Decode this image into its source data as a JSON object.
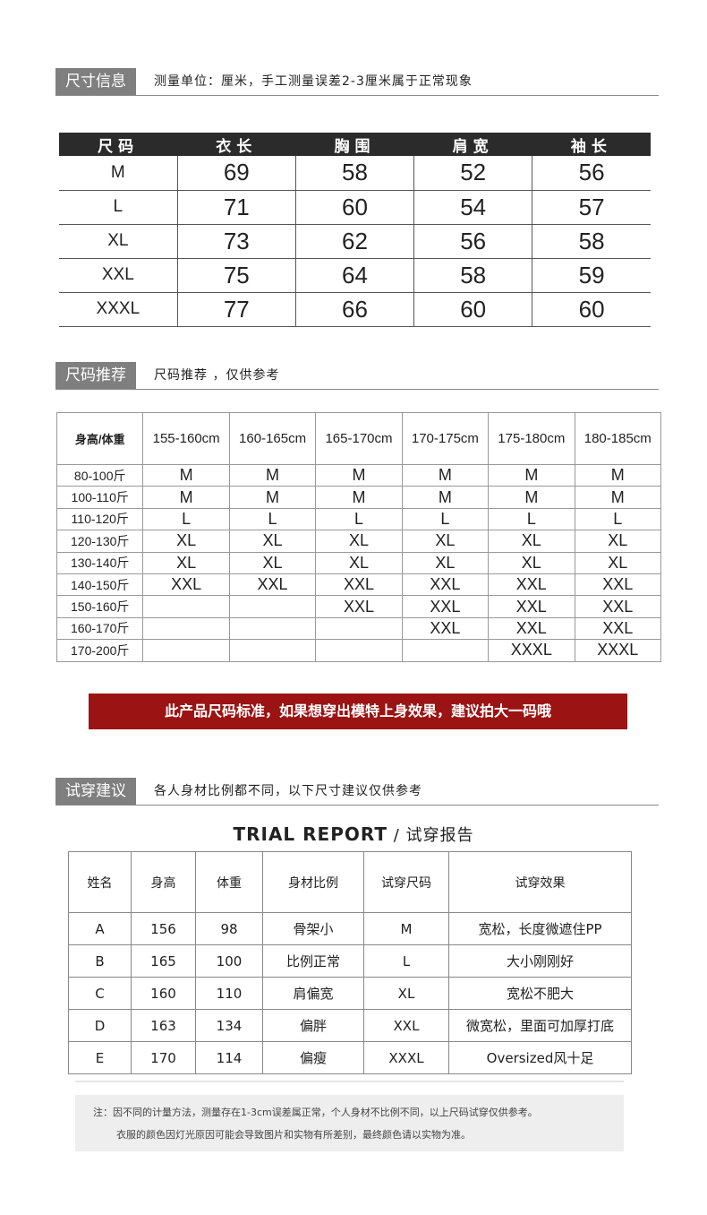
{
  "size_info": {
    "label": "尺寸信息",
    "subtitle": "测量单位：厘米，手工测量误差2-3厘米属于正常现象",
    "headers": [
      "尺码",
      "衣长",
      "胸围",
      "肩宽",
      "袖长"
    ],
    "rows": [
      [
        "M",
        "69",
        "58",
        "52",
        "56"
      ],
      [
        "L",
        "71",
        "60",
        "54",
        "57"
      ],
      [
        "XL",
        "73",
        "62",
        "56",
        "58"
      ],
      [
        "XXL",
        "75",
        "64",
        "58",
        "59"
      ],
      [
        "XXXL",
        "77",
        "66",
        "60",
        "60"
      ]
    ]
  },
  "size_rec": {
    "label": "尺码推荐",
    "subtitle": "尺码推荐 ，仅供参考",
    "headers": [
      "身高/体重",
      "155-160cm",
      "160-165cm",
      "165-170cm",
      "170-175cm",
      "175-180cm",
      "180-185cm"
    ],
    "rows": [
      [
        "80-100斤",
        "M",
        "M",
        "M",
        "M",
        "M",
        "M"
      ],
      [
        "100-110斤",
        "M",
        "M",
        "M",
        "M",
        "M",
        "M"
      ],
      [
        "110-120斤",
        "L",
        "L",
        "L",
        "L",
        "L",
        "L"
      ],
      [
        "120-130斤",
        "XL",
        "XL",
        "XL",
        "XL",
        "XL",
        "XL"
      ],
      [
        "130-140斤",
        "XL",
        "XL",
        "XL",
        "XL",
        "XL",
        "XL"
      ],
      [
        "140-150斤",
        "XXL",
        "XXL",
        "XXL",
        "XXL",
        "XXL",
        "XXL"
      ],
      [
        "150-160斤",
        "",
        "",
        "XXL",
        "XXL",
        "XXL",
        "XXL"
      ],
      [
        "160-170斤",
        "",
        "",
        "",
        "XXL",
        "XXL",
        "XXL"
      ],
      [
        "170-200斤",
        "",
        "",
        "",
        "",
        "XXXL",
        "XXXL"
      ]
    ]
  },
  "banner": {
    "text": "此产品尺码标准，如果想穿出模特上身效果，建议拍大一码哦",
    "color": "#9c1313"
  },
  "trial": {
    "label": "试穿建议",
    "subtitle": "各人身材比例都不同，以下尺寸建议仅供参考",
    "title_en": "TRIAL REPORT",
    "title_cn": " / 试穿报告",
    "headers": [
      "姓名",
      "身高",
      "体重",
      "身材比例",
      "试穿尺码",
      "试穿效果"
    ],
    "rows": [
      [
        "A",
        "156",
        "98",
        "骨架小",
        "M",
        "宽松，长度微遮住PP"
      ],
      [
        "B",
        "165",
        "100",
        "比例正常",
        "L",
        "大小刚刚好"
      ],
      [
        "C",
        "160",
        "110",
        "肩偏宽",
        "XL",
        "宽松不肥大"
      ],
      [
        "D",
        "163",
        "134",
        "偏胖",
        "XXL",
        "微宽松，里面可加厚打底"
      ],
      [
        "E",
        "170",
        "114",
        "偏瘦",
        "XXXL",
        "Oversized风十足"
      ]
    ]
  },
  "note": {
    "line1": "注：因不同的计量方法，测量存在1-3cm误差属正常，个人身材不比例不同，以上尺码试穿仅供参考。",
    "line2": "衣服的颜色因灯光原因可能会导致图片和实物有所差别，最终颜色请以实物为准。"
  }
}
